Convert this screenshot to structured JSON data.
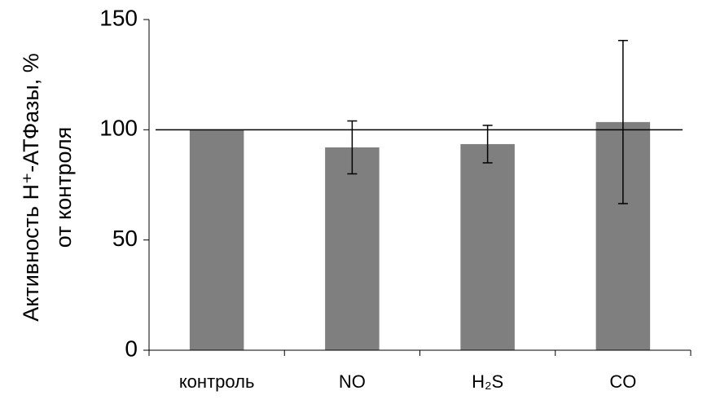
{
  "chart_data": {
    "type": "bar",
    "ylabel": [
      "Активность H⁺-АТФазы, %",
      "от контроля"
    ],
    "categories": [
      "контроль",
      "NO",
      "H₂S",
      "CO"
    ],
    "values": [
      100,
      92,
      93.5,
      103.5
    ],
    "errors": [
      null,
      12,
      8.5,
      37
    ],
    "color": "#7f7f7f",
    "hline": 100,
    "ylim": [
      0,
      150
    ],
    "yticks": [
      0,
      50,
      100,
      150
    ]
  }
}
